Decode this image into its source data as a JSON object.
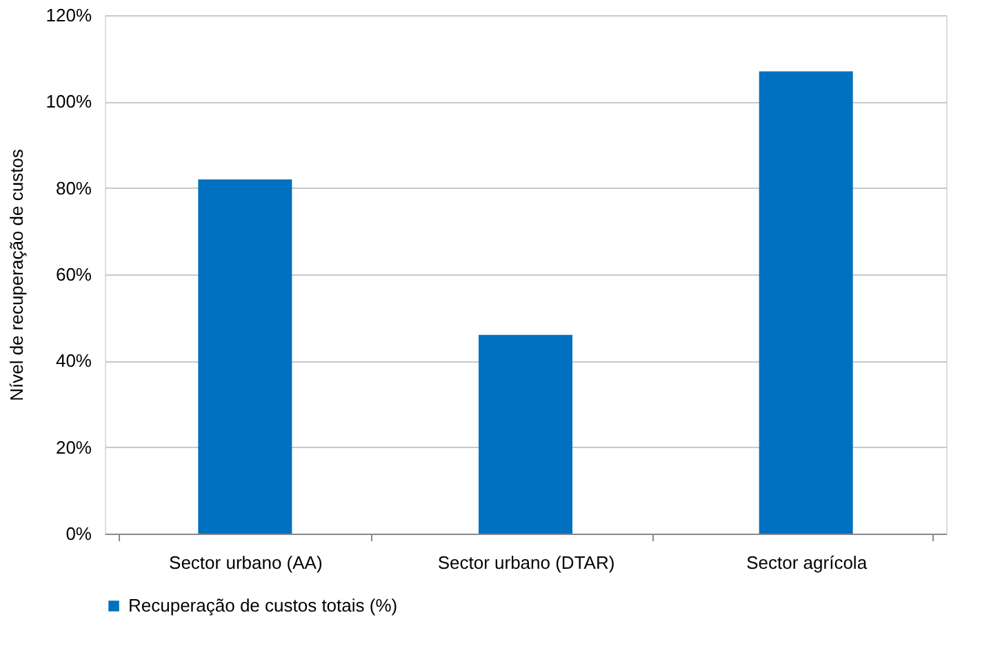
{
  "chart_data": {
    "type": "bar",
    "ylabel": "Nível de recuperação de custos",
    "categories": [
      "Sector urbano (AA)",
      "Sector urbano (DTAR)",
      "Sector agrícola"
    ],
    "series": [
      {
        "name": "Recuperação de custos totais (%)",
        "color": "#0070c0",
        "values": [
          82,
          46,
          107
        ]
      }
    ],
    "ylim": [
      0,
      120
    ],
    "yticks": [
      {
        "value": 0,
        "label": "0%"
      },
      {
        "value": 20,
        "label": "20%"
      },
      {
        "value": 40,
        "label": "40%"
      },
      {
        "value": 60,
        "label": "60%"
      },
      {
        "value": 80,
        "label": "80%"
      },
      {
        "value": 100,
        "label": "100%"
      },
      {
        "value": 120,
        "label": "120%"
      }
    ],
    "grid": "y",
    "legend": "bottom"
  }
}
